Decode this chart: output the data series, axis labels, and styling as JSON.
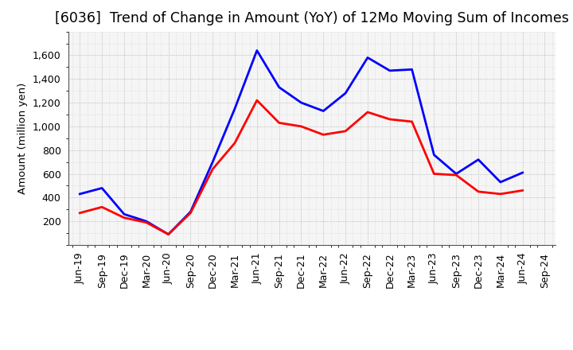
{
  "title": "[6036]  Trend of Change in Amount (YoY) of 12Mo Moving Sum of Incomes",
  "ylabel": "Amount (million yen)",
  "x_labels": [
    "Jun-19",
    "Sep-19",
    "Dec-19",
    "Mar-20",
    "Jun-20",
    "Sep-20",
    "Dec-20",
    "Mar-21",
    "Jun-21",
    "Sep-21",
    "Dec-21",
    "Mar-22",
    "Jun-22",
    "Sep-22",
    "Dec-22",
    "Mar-23",
    "Jun-23",
    "Sep-23",
    "Dec-23",
    "Mar-24",
    "Jun-24",
    "Sep-24"
  ],
  "ordinary_income": [
    430,
    480,
    260,
    200,
    90,
    280,
    700,
    1150,
    1640,
    1330,
    1200,
    1130,
    1280,
    1580,
    1470,
    1480,
    760,
    600,
    720,
    530,
    610,
    null
  ],
  "net_income": [
    270,
    320,
    230,
    190,
    90,
    270,
    640,
    860,
    1220,
    1030,
    1000,
    930,
    960,
    1120,
    1060,
    1040,
    600,
    590,
    450,
    430,
    460,
    null
  ],
  "ordinary_color": "#0000FF",
  "net_color": "#FF0000",
  "background_color": "#F0F0F0",
  "plot_bg_color": "#E8E8E8",
  "grid_color": "#AAAAAA",
  "ylim": [
    0,
    1800
  ],
  "yticks": [
    200,
    400,
    600,
    800,
    1000,
    1200,
    1400,
    1600
  ],
  "line_width": 2.0,
  "title_fontsize": 12.5,
  "axis_fontsize": 9.5,
  "tick_fontsize": 9,
  "legend_fontsize": 10
}
